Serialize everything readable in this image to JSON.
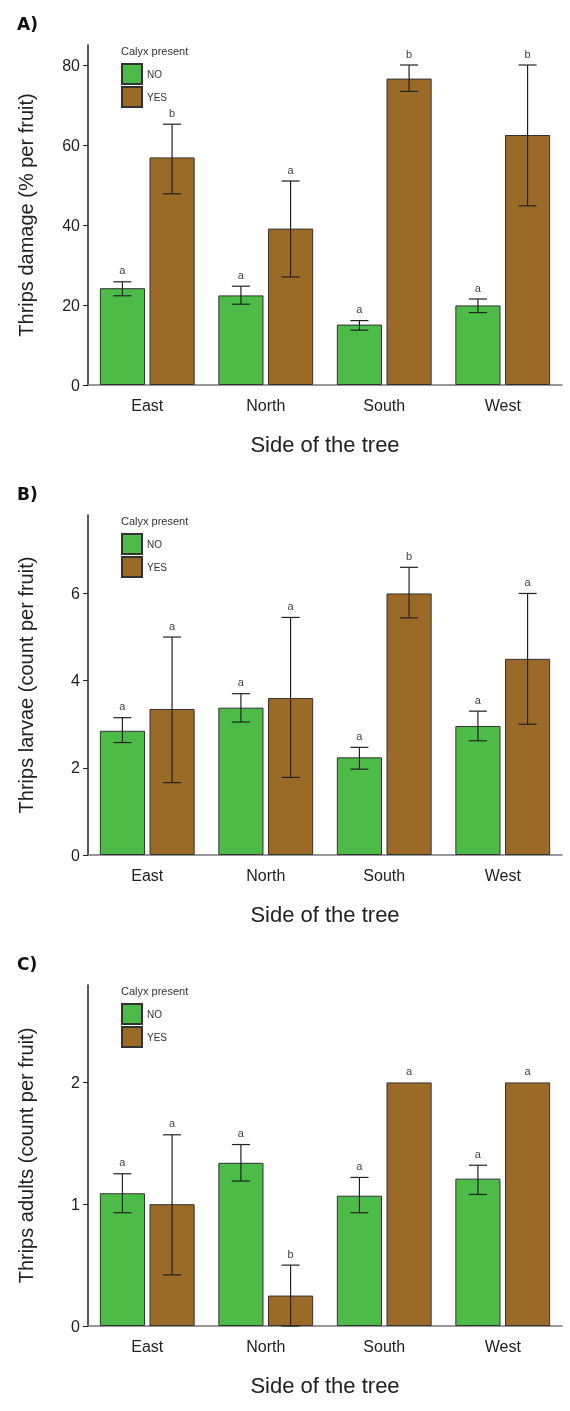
{
  "chart_data": [
    {
      "type": "bar",
      "title": "A)",
      "xlabel": "Side of the tree",
      "ylabel": "Thrips damage (% per fruit)",
      "legend_title": "Calyx present",
      "legend": "top left",
      "categories": [
        "East",
        "North",
        "South",
        "West"
      ],
      "ylim": [
        0,
        85
      ],
      "yticks": [
        0,
        20,
        40,
        60,
        80
      ],
      "grid": false,
      "series": [
        {
          "name": "NO",
          "color": "#4cbb47",
          "values": [
            24.2,
            22.4,
            15.1,
            19.9
          ],
          "errors": [
            [
              22.3,
              25.8
            ],
            [
              20.2,
              24.7
            ],
            [
              13.7,
              16.1
            ],
            [
              18.1,
              21.5
            ]
          ]
        },
        {
          "name": "YES",
          "color": "#9c6a27",
          "values": [
            56.9,
            39.1,
            76.6,
            62.5
          ],
          "errors": [
            [
              47.8,
              65.2
            ],
            [
              27,
              51
            ],
            [
              73.4,
              80
            ],
            [
              44.8,
              80
            ]
          ]
        }
      ],
      "annotations": [
        "a",
        "a",
        "a",
        "a",
        "b",
        "a",
        "b",
        "b"
      ]
    },
    {
      "type": "bar",
      "title": "B)",
      "xlabel": "Side of the tree",
      "ylabel": "Thrips larvae (count per fruit)",
      "legend_title": "Calyx present",
      "legend": "top left",
      "categories": [
        "East",
        "North",
        "South",
        "West"
      ],
      "ylim": [
        0,
        7.8
      ],
      "yticks": [
        0,
        2,
        4,
        6
      ],
      "grid": false,
      "series": [
        {
          "name": "NO",
          "color": "#4cbb47",
          "values": [
            2.85,
            3.38,
            2.24,
            2.96
          ],
          "errors": [
            [
              2.58,
              3.15
            ],
            [
              3.05,
              3.7
            ],
            [
              1.97,
              2.47
            ],
            [
              2.62,
              3.3
            ]
          ]
        },
        {
          "name": "YES",
          "color": "#9c6a27",
          "values": [
            3.35,
            3.6,
            6.0,
            4.5
          ],
          "errors": [
            [
              1.66,
              5.0
            ],
            [
              1.78,
              5.45
            ],
            [
              5.44,
              6.6
            ],
            [
              3.0,
              6.0
            ]
          ]
        }
      ],
      "annotations": [
        "a",
        "a",
        "a",
        "a",
        "a",
        "a",
        "b",
        "a"
      ]
    },
    {
      "type": "bar",
      "title": "C)",
      "xlabel": "Side of the tree",
      "ylabel": "Thrips adults (count per fruit)",
      "legend_title": "Calyx present",
      "legend": "top left",
      "categories": [
        "East",
        "North",
        "South",
        "West"
      ],
      "ylim": [
        0,
        2.8
      ],
      "yticks": [
        0,
        1,
        2
      ],
      "grid": false,
      "series": [
        {
          "name": "NO",
          "color": "#4cbb47",
          "values": [
            1.09,
            1.34,
            1.07,
            1.21
          ],
          "errors": [
            [
              0.93,
              1.25
            ],
            [
              1.19,
              1.49
            ],
            [
              0.93,
              1.22
            ],
            [
              1.08,
              1.32
            ]
          ]
        },
        {
          "name": "YES",
          "color": "#9c6a27",
          "values": [
            1.0,
            0.25,
            2.0,
            2.0
          ],
          "errors": [
            [
              0.42,
              1.57
            ],
            [
              0,
              0.5
            ],
            null,
            null
          ]
        }
      ],
      "annotations": [
        "a",
        "a",
        "a",
        "a",
        "a",
        "b",
        "a",
        "a"
      ]
    }
  ]
}
